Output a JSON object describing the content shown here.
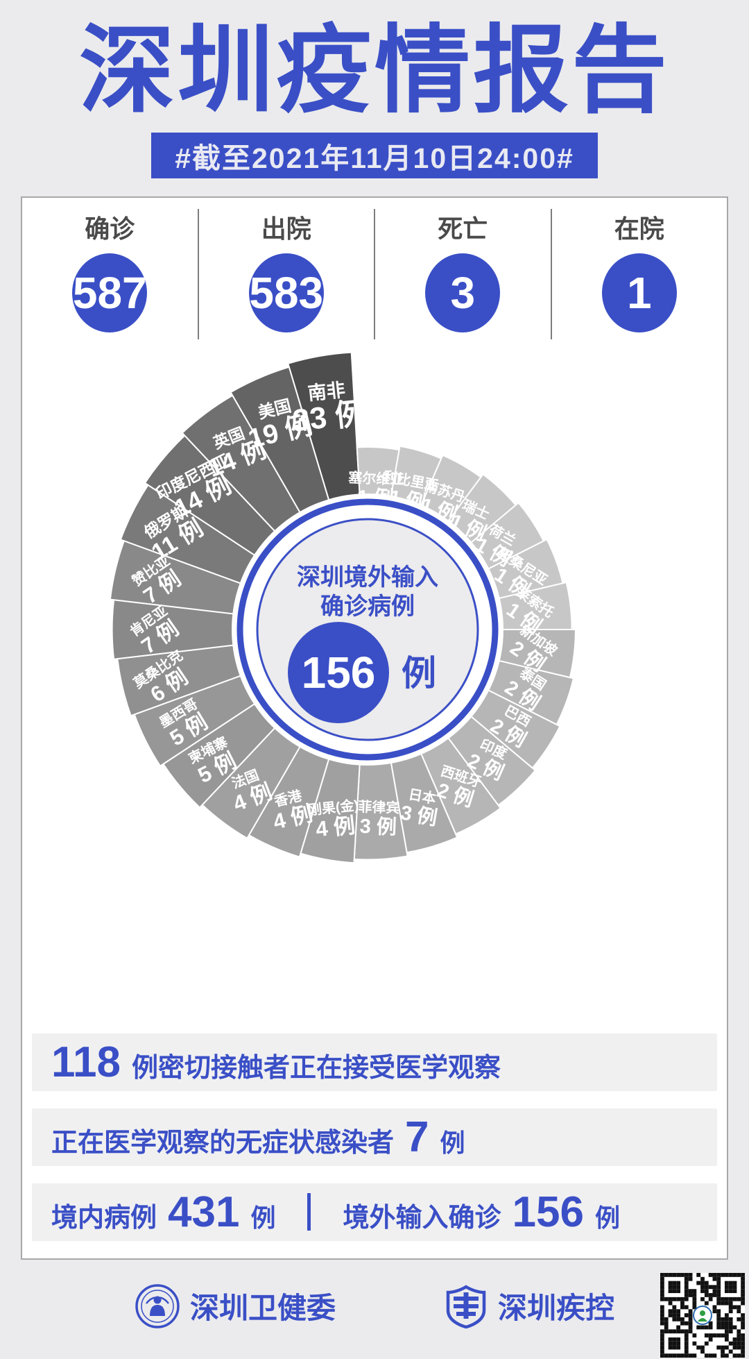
{
  "header": {
    "title": "深圳疫情报告",
    "date_banner": "#截至2021年11月10日24:00#"
  },
  "stats": [
    {
      "label": "确诊",
      "value": "587"
    },
    {
      "label": "出院",
      "value": "583"
    },
    {
      "label": "死亡",
      "value": "3"
    },
    {
      "label": "在院",
      "value": "1"
    }
  ],
  "chart_data": {
    "type": "pie",
    "variant": "nightingale-rose",
    "order": "clockwise-from-top",
    "title": "深圳境外输入确诊病例",
    "center_label_line1": "深圳境外输入",
    "center_label_line2": "确诊病例",
    "total_value": "156",
    "unit": "例",
    "slices": [
      {
        "name": "南非",
        "value": 33
      },
      {
        "name": "塞尔维亚",
        "value": 1
      },
      {
        "name": "利比里亚",
        "value": 1
      },
      {
        "name": "南苏丹",
        "value": 1
      },
      {
        "name": "瑞士",
        "value": 1
      },
      {
        "name": "荷兰",
        "value": 1
      },
      {
        "name": "坦桑尼亚",
        "value": 1
      },
      {
        "name": "莱索托",
        "value": 1
      },
      {
        "name": "新加坡",
        "value": 2
      },
      {
        "name": "泰国",
        "value": 2
      },
      {
        "name": "巴西",
        "value": 2
      },
      {
        "name": "印度",
        "value": 2
      },
      {
        "name": "西班牙",
        "value": 2
      },
      {
        "name": "日本",
        "value": 3
      },
      {
        "name": "菲律宾",
        "value": 3
      },
      {
        "name": "刚果(金)",
        "value": 4
      },
      {
        "name": "香港",
        "value": 4
      },
      {
        "name": "法国",
        "value": 4
      },
      {
        "name": "柬埔寨",
        "value": 5
      },
      {
        "name": "墨西哥",
        "value": 5
      },
      {
        "name": "莫桑比克",
        "value": 6
      },
      {
        "name": "肯尼亚",
        "value": 7
      },
      {
        "name": "赞比亚",
        "value": 7
      },
      {
        "name": "俄罗斯",
        "value": 11
      },
      {
        "name": "印度尼西亚",
        "value": 14
      },
      {
        "name": "英国",
        "value": 14
      },
      {
        "name": "美国",
        "value": 19
      }
    ],
    "value_colors": {
      "1": "#c7c7c7",
      "2": "#b6b6b6",
      "3": "#aaaaaa",
      "4": "#a0a0a0",
      "5": "#979797",
      "6": "#909090",
      "7": "#898989",
      "11": "#7a7a7a",
      "14": "#707070",
      "19": "#646464",
      "33": "#4d4d4d"
    },
    "label_color": "#ffffff"
  },
  "notes": {
    "close_contacts": {
      "value": "118",
      "text": "例密切接触者正在接受医学观察"
    },
    "asymptomatic": {
      "text": "正在医学观察的无症状感染者",
      "value": "7",
      "unit": "例"
    },
    "split": {
      "left_label": "境内病例",
      "left_value": "431",
      "left_unit": "例",
      "right_label": "境外输入确诊",
      "right_value": "156",
      "right_unit": "例"
    }
  },
  "footer": {
    "org1": "深圳卫健委",
    "org2": "深圳疾控"
  },
  "colors": {
    "accent": "#3a4fc6",
    "page_bg": "#ebebed",
    "card_bg": "#ffffff",
    "note_bg": "#f0f0f1",
    "stat_label": "#4a4a4a"
  }
}
